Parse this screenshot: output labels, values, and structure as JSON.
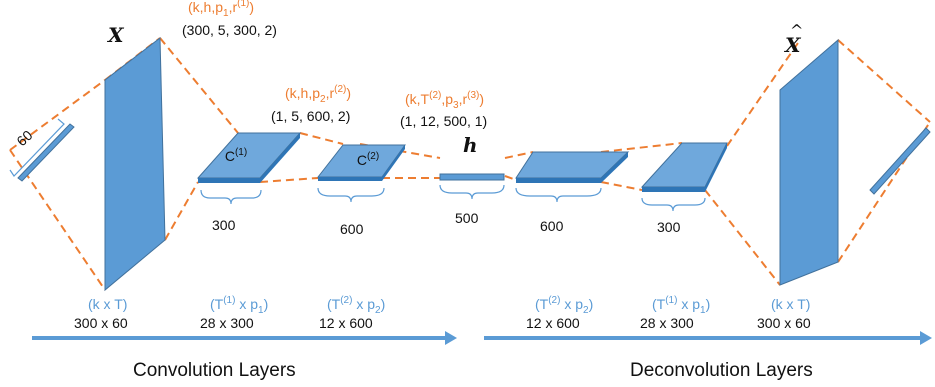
{
  "symbols": {
    "input": "X",
    "output": "X",
    "latent": "h"
  },
  "layer_labels": {
    "c1": "C(1)",
    "c2": "C(2)"
  },
  "params": {
    "l1_orange": "(k,h,p1,r(1))",
    "l1_black": "(300, 5, 300, 2)",
    "l2_orange": "(k,h,p2,r(2))",
    "l2_black": "(1, 5, 600, 2)",
    "l3_orange": "(k,T(2),p3,r(3))",
    "l3_black": "(1, 12, 500, 1)"
  },
  "widths": {
    "input": "60",
    "c1": "300",
    "c2": "600",
    "h": "500",
    "d1": "600",
    "d2": "300"
  },
  "dims": [
    {
      "blue": "(k x T)",
      "black": "300 x 60"
    },
    {
      "blue": "(T(1) x p1)",
      "black": "28 x 300"
    },
    {
      "blue": "(T(2) x p2)",
      "black": "12 x 600"
    },
    {
      "blue": "(T(2) x p2)",
      "black": "12 x 600"
    },
    {
      "blue": "(T(1) x p1)",
      "black": "28 x 300"
    },
    {
      "blue": "(k x T)",
      "black": "300 x 60"
    }
  ],
  "sections": {
    "encoder": "Convolution Layers",
    "decoder": "Deconvolution Layers"
  },
  "colors": {
    "accent": "#5b9bd5",
    "dashes": "#ed7d31"
  }
}
